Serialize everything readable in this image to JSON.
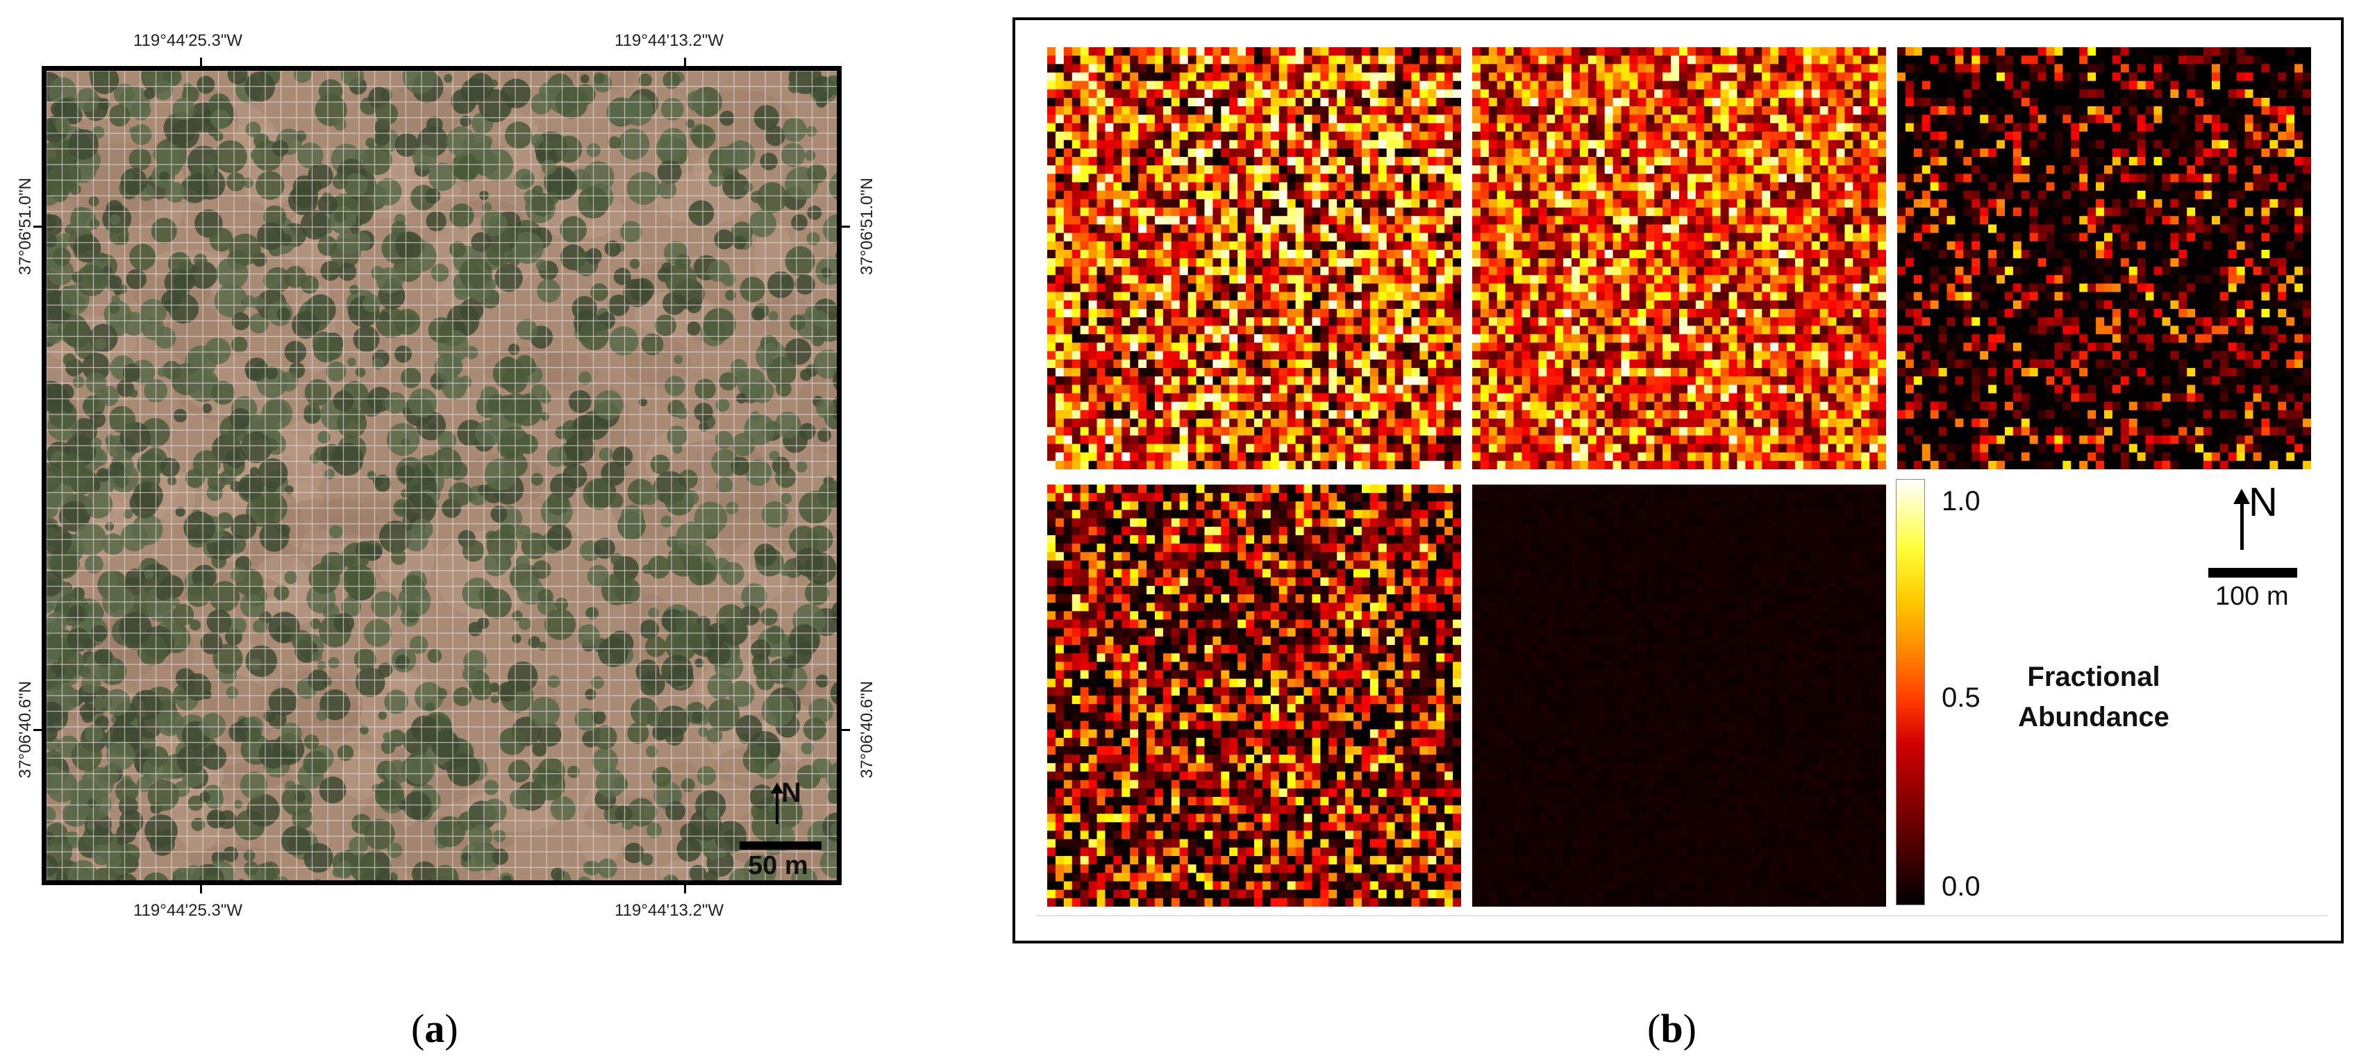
{
  "panel_a": {
    "label": "a",
    "top_coords": [
      "119°44'25.3\"W",
      "119°44'13.2\"W"
    ],
    "bottom_coords": [
      "119°44'25.3\"W",
      "119°44'13.2\"W"
    ],
    "left_coords": [
      "37°06'51.0\"N",
      "37°06'40.6\"N"
    ],
    "right_coords": [
      "37°06'51.0\"N",
      "37°06'40.6\"N"
    ],
    "north_label": "N",
    "scale_label": "50 m",
    "colors": {
      "soil": "#a98a75",
      "tree": "#4a5a3a",
      "grid": "#e8e0da"
    }
  },
  "panel_b": {
    "label": "b",
    "colorbar": {
      "title_line1": "Fractional",
      "title_line2": "Abundance",
      "ticks": [
        "1.0",
        "0.5",
        "0.0"
      ],
      "colormap": "hot"
    },
    "north_label": "N",
    "scale_label": "100 m",
    "maps": [
      {
        "name": "abundance-map-1",
        "mean_level": 0.45
      },
      {
        "name": "abundance-map-2",
        "mean_level": 0.75
      },
      {
        "name": "abundance-map-3",
        "mean_level": 0.06
      },
      {
        "name": "abundance-map-4",
        "mean_level": 0.22
      },
      {
        "name": "abundance-map-5",
        "mean_level": 0.01
      }
    ]
  }
}
